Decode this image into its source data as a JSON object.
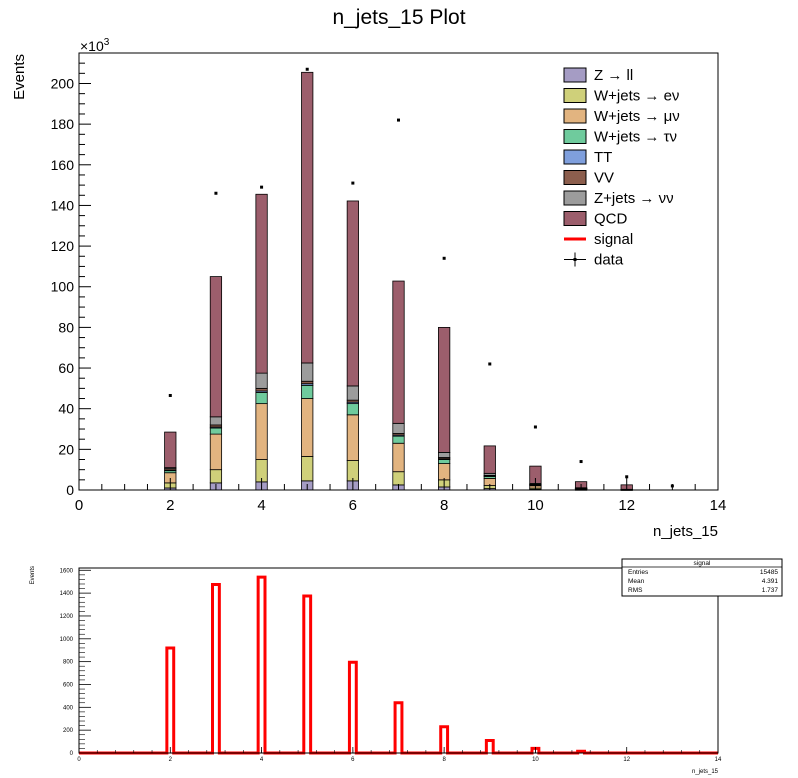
{
  "chart_data": [
    {
      "type": "bar",
      "title": "n_jets_15 Plot",
      "xlabel": "n_jets_15",
      "ylabel": "Events",
      "y_multiplier": "×10",
      "y_multiplier_exp": "3",
      "xlim": [
        0,
        14
      ],
      "ylim": [
        0,
        215
      ],
      "x_ticks": [
        0,
        2,
        4,
        6,
        8,
        10,
        12,
        14
      ],
      "y_ticks": [
        0,
        20,
        40,
        60,
        80,
        100,
        120,
        140,
        160,
        180,
        200
      ],
      "stacked": true,
      "bin_width": 0.25,
      "categories": [
        2,
        3,
        4,
        5,
        6,
        7,
        8,
        9,
        10,
        11,
        12
      ],
      "series": [
        {
          "name": "Z → ll",
          "color": "#a59cc4",
          "values": [
            1.0,
            3.5,
            4.0,
            4.5,
            4.5,
            2.5,
            1.5,
            0.7,
            0.3,
            0.1,
            0.05
          ]
        },
        {
          "name": "W+jets → eν",
          "color": "#cfd07a",
          "values": [
            2.5,
            6.5,
            11.0,
            12.0,
            10.0,
            6.5,
            3.5,
            1.5,
            0.6,
            0.2,
            0.05
          ]
        },
        {
          "name": "W+jets → μν",
          "color": "#e2b480",
          "values": [
            5.0,
            17.5,
            27.5,
            28.5,
            22.5,
            14.0,
            8.0,
            3.5,
            1.2,
            0.4,
            0.1
          ]
        },
        {
          "name": "W+jets → τν",
          "color": "#6fcb9d",
          "values": [
            1.0,
            3.0,
            5.5,
            6.5,
            5.5,
            3.5,
            2.0,
            1.0,
            0.4,
            0.1,
            0.05
          ]
        },
        {
          "name": "TT",
          "color": "#7f9fdd",
          "values": [
            0.3,
            0.5,
            0.7,
            0.8,
            0.7,
            0.5,
            0.4,
            0.2,
            0.1,
            0.05,
            0.02
          ]
        },
        {
          "name": "VV",
          "color": "#8c5e4d",
          "values": [
            0.7,
            1.0,
            1.3,
            1.2,
            1.0,
            0.8,
            0.6,
            0.3,
            0.15,
            0.05,
            0.02
          ]
        },
        {
          "name": "Z+jets → νν",
          "color": "#9c9c9c",
          "values": [
            0.5,
            4.0,
            7.5,
            9.0,
            7.0,
            5.0,
            2.5,
            1.0,
            0.5,
            0.2,
            0.05
          ]
        },
        {
          "name": "QCD",
          "color": "#9c5e6c",
          "values": [
            17.5,
            69.0,
            88.0,
            143.0,
            91.0,
            70.0,
            61.5,
            13.5,
            8.5,
            3.0,
            2.2
          ]
        }
      ],
      "data": {
        "name": "data",
        "x": [
          2,
          3,
          4,
          5,
          6,
          7,
          8,
          9,
          10,
          11,
          12,
          13
        ],
        "y": [
          46.5,
          146,
          149,
          207,
          151,
          182,
          114,
          62,
          31,
          14,
          6.5,
          2
        ]
      },
      "signal": {
        "name": "signal",
        "color": "#ff0000"
      },
      "legend_position": "top-right"
    },
    {
      "type": "bar",
      "title": "",
      "xlabel": "n_jets_15",
      "ylabel": "Events",
      "xlim": [
        0,
        14
      ],
      "ylim": [
        0,
        1620
      ],
      "x_ticks": [
        0,
        2,
        4,
        6,
        8,
        10,
        12,
        14
      ],
      "y_ticks": [
        0,
        200,
        400,
        600,
        800,
        1000,
        1200,
        1400,
        1600
      ],
      "bin_width": 0.15,
      "x": [
        2,
        3,
        4,
        5,
        6,
        7,
        8,
        9,
        10,
        11
      ],
      "values": [
        920,
        1475,
        1540,
        1375,
        795,
        440,
        230,
        110,
        40,
        15
      ],
      "color": "#ff0000",
      "stats_box": {
        "title": "signal",
        "rows": [
          {
            "label": "Entries",
            "value": "15485"
          },
          {
            "label": "Mean",
            "value": "4.391"
          },
          {
            "label": "RMS",
            "value": "1.737"
          }
        ]
      }
    }
  ]
}
